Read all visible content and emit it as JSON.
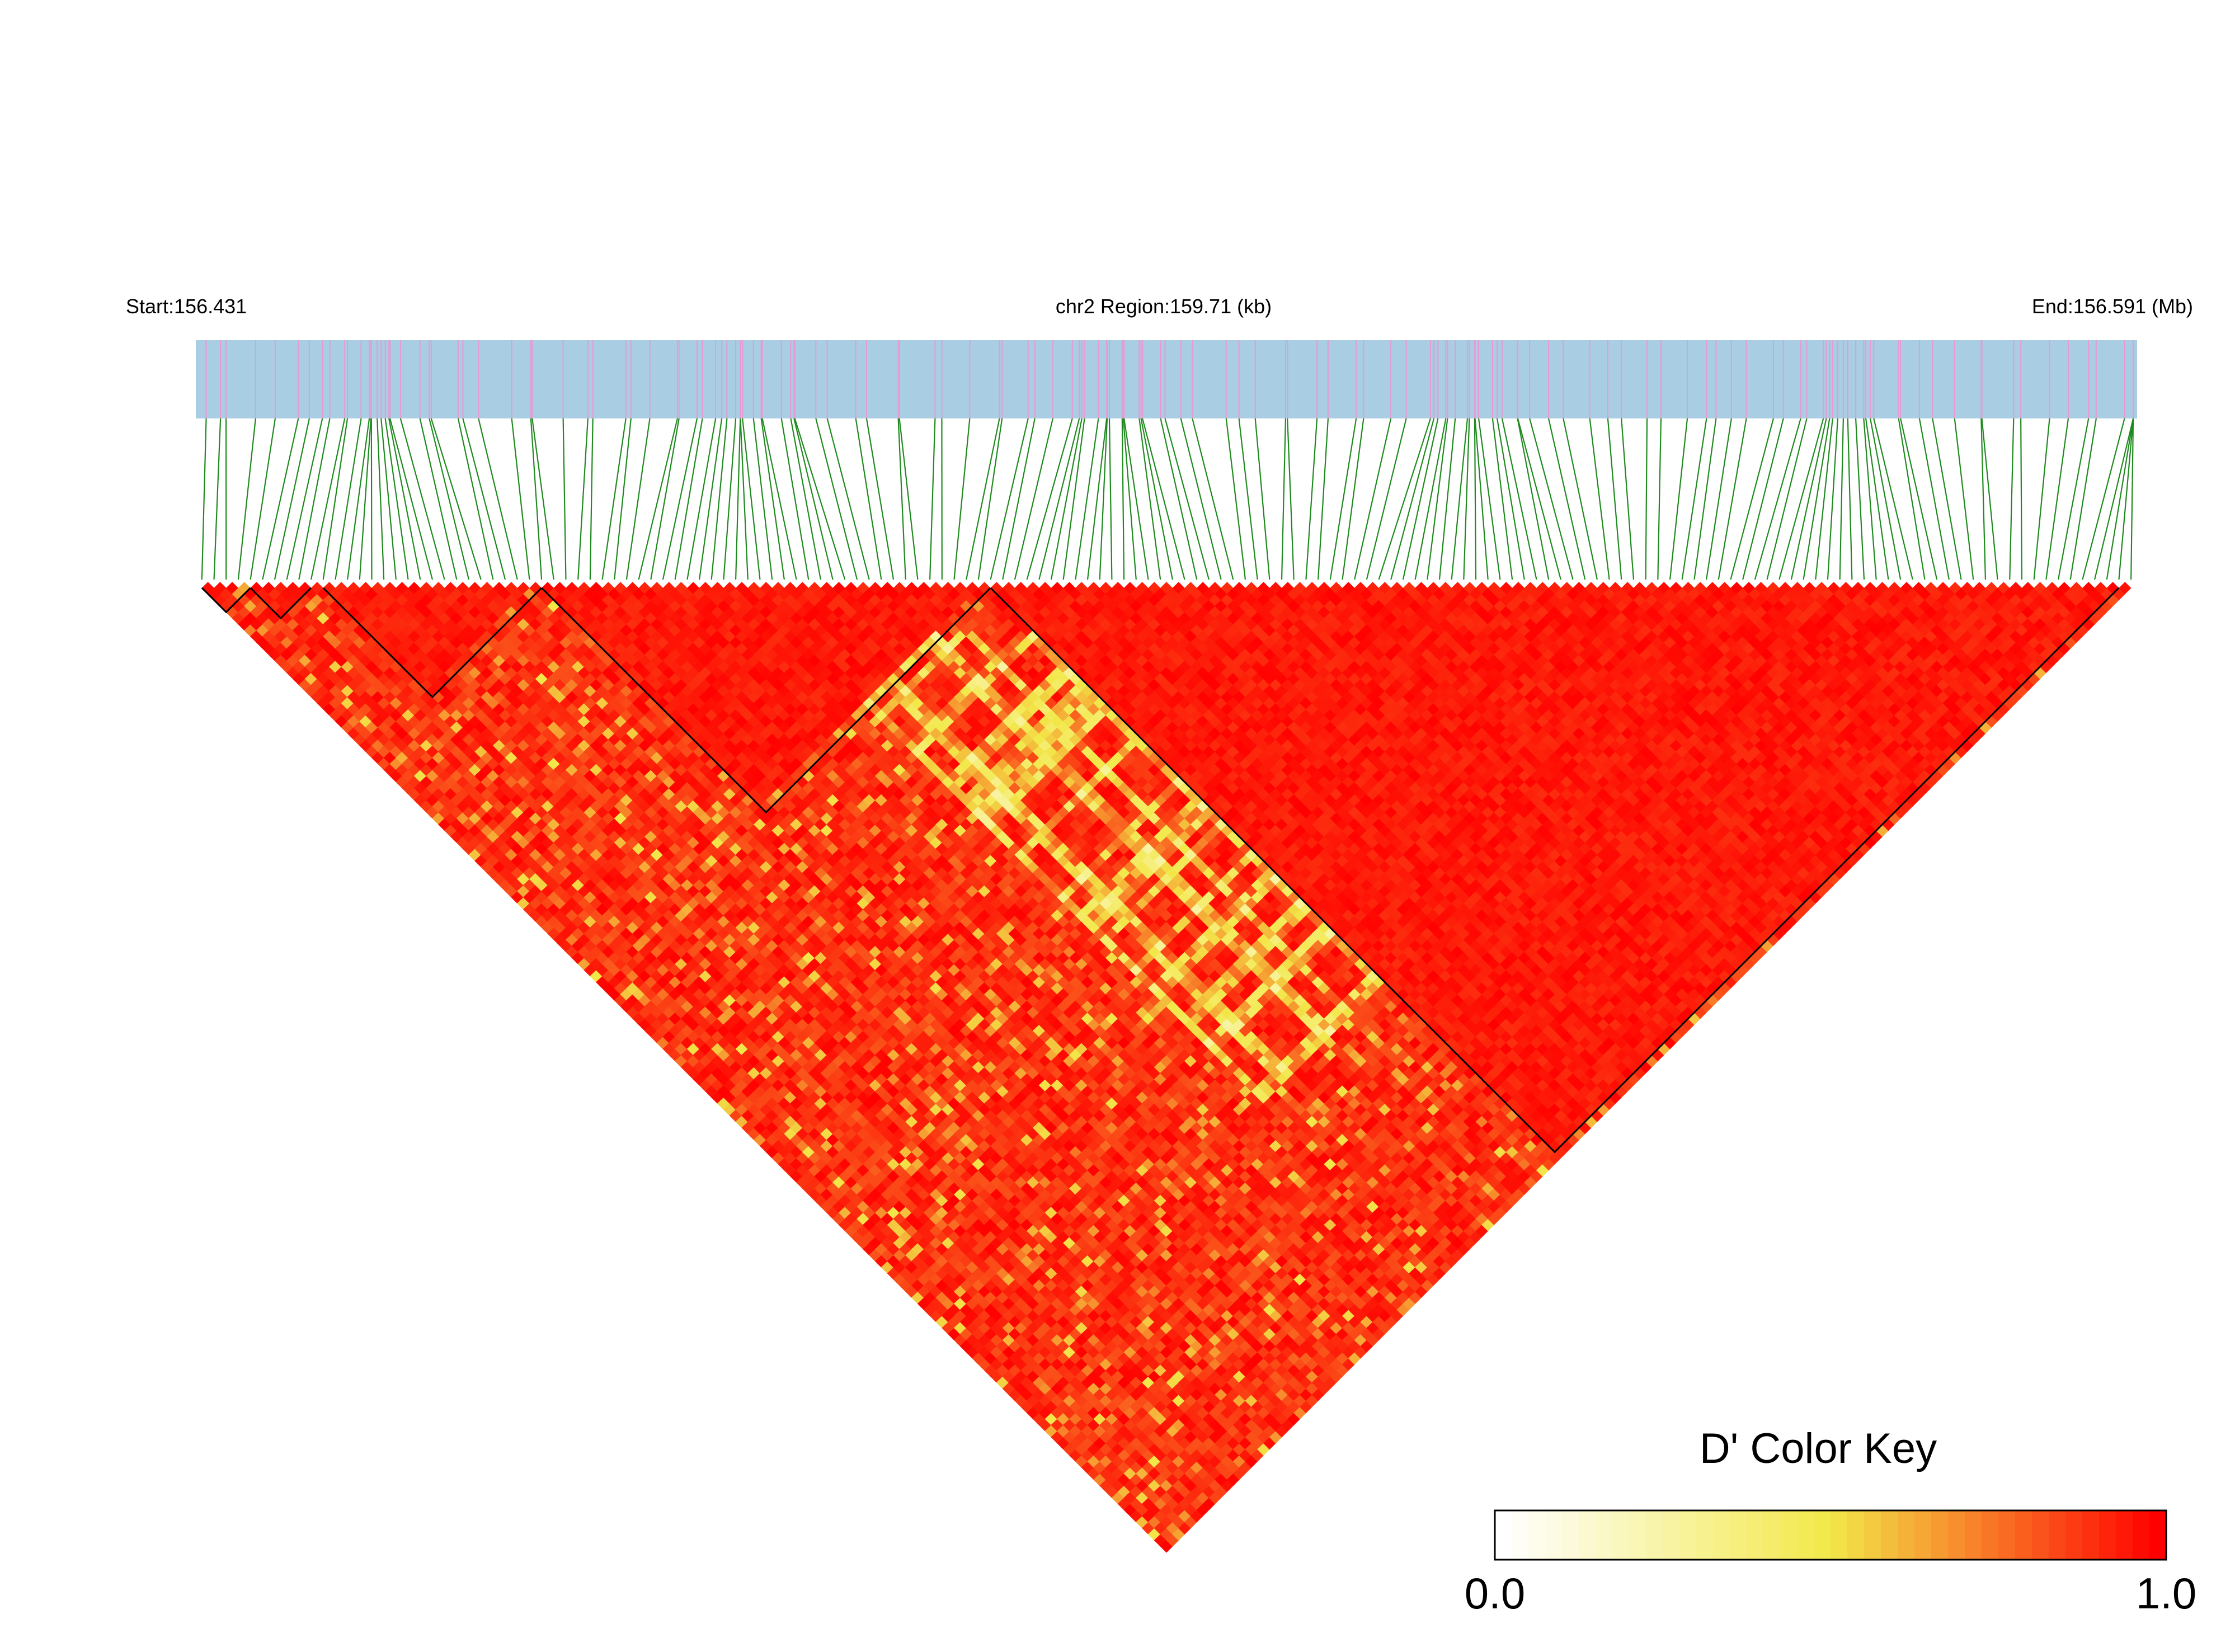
{
  "header": {
    "start_label": "Start:156.431",
    "region_label": "chr2 Region:159.71 (kb)",
    "end_label": "End:156.591 (Mb)"
  },
  "legend": {
    "title": "D' Color Key",
    "min_label": "0.0",
    "max_label": "1.0",
    "placement": "bottom-right"
  },
  "colors": {
    "track_background": "#a9cde3",
    "snp_tick": "#e79ad3",
    "connector_line": "#1f8a1f",
    "high_ld": "#ff0000",
    "mid_ld": "#f2e84a",
    "low_ld": "#ffffff",
    "block_outline": "#000000"
  },
  "chart_data": {
    "type": "heatmap",
    "metric": "D'",
    "chromosome": "chr2",
    "region_start_mb": 156.431,
    "region_end_mb": 156.591,
    "region_size_kb": 159.71,
    "snp_count": 160,
    "value_range": [
      0.0,
      1.0
    ],
    "color_scale": [
      "#ffffff",
      "#f2e84a",
      "#ff0000"
    ],
    "ld_blocks": [
      {
        "first_snp": 0,
        "last_snp": 4,
        "mean_dprime": 0.98
      },
      {
        "first_snp": 4,
        "last_snp": 9,
        "mean_dprime": 0.97
      },
      {
        "first_snp": 10,
        "last_snp": 28,
        "mean_dprime": 0.96
      },
      {
        "first_snp": 28,
        "last_snp": 65,
        "mean_dprime": 0.93
      },
      {
        "first_snp": 65,
        "last_snp": 158,
        "mean_dprime": 0.95
      }
    ],
    "low_ld_band": {
      "snp_from": 45,
      "snp_to": 130,
      "typical_dprime": 0.45
    }
  }
}
